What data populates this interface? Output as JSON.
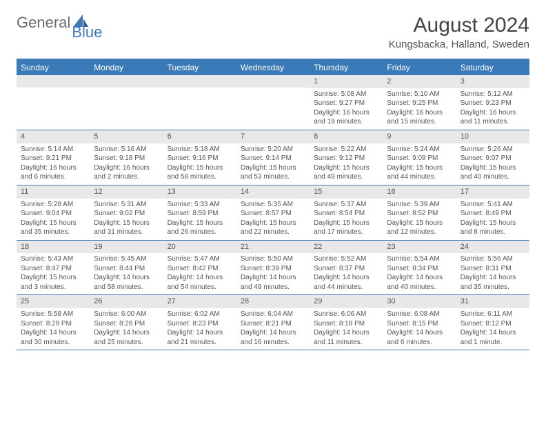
{
  "logo": {
    "text1": "General",
    "text2": "Blue"
  },
  "title": "August 2024",
  "location": "Kungsbacka, Halland, Sweden",
  "colors": {
    "header_bg": "#3a7ab8",
    "header_text": "#ffffff",
    "day_bar_bg": "#e8e8e8",
    "border": "#3a7ab8",
    "body_text": "#555555"
  },
  "weekdays": [
    "Sunday",
    "Monday",
    "Tuesday",
    "Wednesday",
    "Thursday",
    "Friday",
    "Saturday"
  ],
  "weeks": [
    [
      {
        "n": "",
        "lines": []
      },
      {
        "n": "",
        "lines": []
      },
      {
        "n": "",
        "lines": []
      },
      {
        "n": "",
        "lines": []
      },
      {
        "n": "1",
        "lines": [
          "Sunrise: 5:08 AM",
          "Sunset: 9:27 PM",
          "Daylight: 16 hours and 19 minutes."
        ]
      },
      {
        "n": "2",
        "lines": [
          "Sunrise: 5:10 AM",
          "Sunset: 9:25 PM",
          "Daylight: 16 hours and 15 minutes."
        ]
      },
      {
        "n": "3",
        "lines": [
          "Sunrise: 5:12 AM",
          "Sunset: 9:23 PM",
          "Daylight: 16 hours and 11 minutes."
        ]
      }
    ],
    [
      {
        "n": "4",
        "lines": [
          "Sunrise: 5:14 AM",
          "Sunset: 9:21 PM",
          "Daylight: 16 hours and 6 minutes."
        ]
      },
      {
        "n": "5",
        "lines": [
          "Sunrise: 5:16 AM",
          "Sunset: 9:18 PM",
          "Daylight: 16 hours and 2 minutes."
        ]
      },
      {
        "n": "6",
        "lines": [
          "Sunrise: 5:18 AM",
          "Sunset: 9:16 PM",
          "Daylight: 15 hours and 58 minutes."
        ]
      },
      {
        "n": "7",
        "lines": [
          "Sunrise: 5:20 AM",
          "Sunset: 9:14 PM",
          "Daylight: 15 hours and 53 minutes."
        ]
      },
      {
        "n": "8",
        "lines": [
          "Sunrise: 5:22 AM",
          "Sunset: 9:12 PM",
          "Daylight: 15 hours and 49 minutes."
        ]
      },
      {
        "n": "9",
        "lines": [
          "Sunrise: 5:24 AM",
          "Sunset: 9:09 PM",
          "Daylight: 15 hours and 44 minutes."
        ]
      },
      {
        "n": "10",
        "lines": [
          "Sunrise: 5:26 AM",
          "Sunset: 9:07 PM",
          "Daylight: 15 hours and 40 minutes."
        ]
      }
    ],
    [
      {
        "n": "11",
        "lines": [
          "Sunrise: 5:28 AM",
          "Sunset: 9:04 PM",
          "Daylight: 15 hours and 35 minutes."
        ]
      },
      {
        "n": "12",
        "lines": [
          "Sunrise: 5:31 AM",
          "Sunset: 9:02 PM",
          "Daylight: 15 hours and 31 minutes."
        ]
      },
      {
        "n": "13",
        "lines": [
          "Sunrise: 5:33 AM",
          "Sunset: 8:59 PM",
          "Daylight: 15 hours and 26 minutes."
        ]
      },
      {
        "n": "14",
        "lines": [
          "Sunrise: 5:35 AM",
          "Sunset: 8:57 PM",
          "Daylight: 15 hours and 22 minutes."
        ]
      },
      {
        "n": "15",
        "lines": [
          "Sunrise: 5:37 AM",
          "Sunset: 8:54 PM",
          "Daylight: 15 hours and 17 minutes."
        ]
      },
      {
        "n": "16",
        "lines": [
          "Sunrise: 5:39 AM",
          "Sunset: 8:52 PM",
          "Daylight: 15 hours and 12 minutes."
        ]
      },
      {
        "n": "17",
        "lines": [
          "Sunrise: 5:41 AM",
          "Sunset: 8:49 PM",
          "Daylight: 15 hours and 8 minutes."
        ]
      }
    ],
    [
      {
        "n": "18",
        "lines": [
          "Sunrise: 5:43 AM",
          "Sunset: 8:47 PM",
          "Daylight: 15 hours and 3 minutes."
        ]
      },
      {
        "n": "19",
        "lines": [
          "Sunrise: 5:45 AM",
          "Sunset: 8:44 PM",
          "Daylight: 14 hours and 58 minutes."
        ]
      },
      {
        "n": "20",
        "lines": [
          "Sunrise: 5:47 AM",
          "Sunset: 8:42 PM",
          "Daylight: 14 hours and 54 minutes."
        ]
      },
      {
        "n": "21",
        "lines": [
          "Sunrise: 5:50 AM",
          "Sunset: 8:39 PM",
          "Daylight: 14 hours and 49 minutes."
        ]
      },
      {
        "n": "22",
        "lines": [
          "Sunrise: 5:52 AM",
          "Sunset: 8:37 PM",
          "Daylight: 14 hours and 44 minutes."
        ]
      },
      {
        "n": "23",
        "lines": [
          "Sunrise: 5:54 AM",
          "Sunset: 8:34 PM",
          "Daylight: 14 hours and 40 minutes."
        ]
      },
      {
        "n": "24",
        "lines": [
          "Sunrise: 5:56 AM",
          "Sunset: 8:31 PM",
          "Daylight: 14 hours and 35 minutes."
        ]
      }
    ],
    [
      {
        "n": "25",
        "lines": [
          "Sunrise: 5:58 AM",
          "Sunset: 8:29 PM",
          "Daylight: 14 hours and 30 minutes."
        ]
      },
      {
        "n": "26",
        "lines": [
          "Sunrise: 6:00 AM",
          "Sunset: 8:26 PM",
          "Daylight: 14 hours and 25 minutes."
        ]
      },
      {
        "n": "27",
        "lines": [
          "Sunrise: 6:02 AM",
          "Sunset: 8:23 PM",
          "Daylight: 14 hours and 21 minutes."
        ]
      },
      {
        "n": "28",
        "lines": [
          "Sunrise: 6:04 AM",
          "Sunset: 8:21 PM",
          "Daylight: 14 hours and 16 minutes."
        ]
      },
      {
        "n": "29",
        "lines": [
          "Sunrise: 6:06 AM",
          "Sunset: 8:18 PM",
          "Daylight: 14 hours and 11 minutes."
        ]
      },
      {
        "n": "30",
        "lines": [
          "Sunrise: 6:08 AM",
          "Sunset: 8:15 PM",
          "Daylight: 14 hours and 6 minutes."
        ]
      },
      {
        "n": "31",
        "lines": [
          "Sunrise: 6:11 AM",
          "Sunset: 8:12 PM",
          "Daylight: 14 hours and 1 minute."
        ]
      }
    ]
  ]
}
